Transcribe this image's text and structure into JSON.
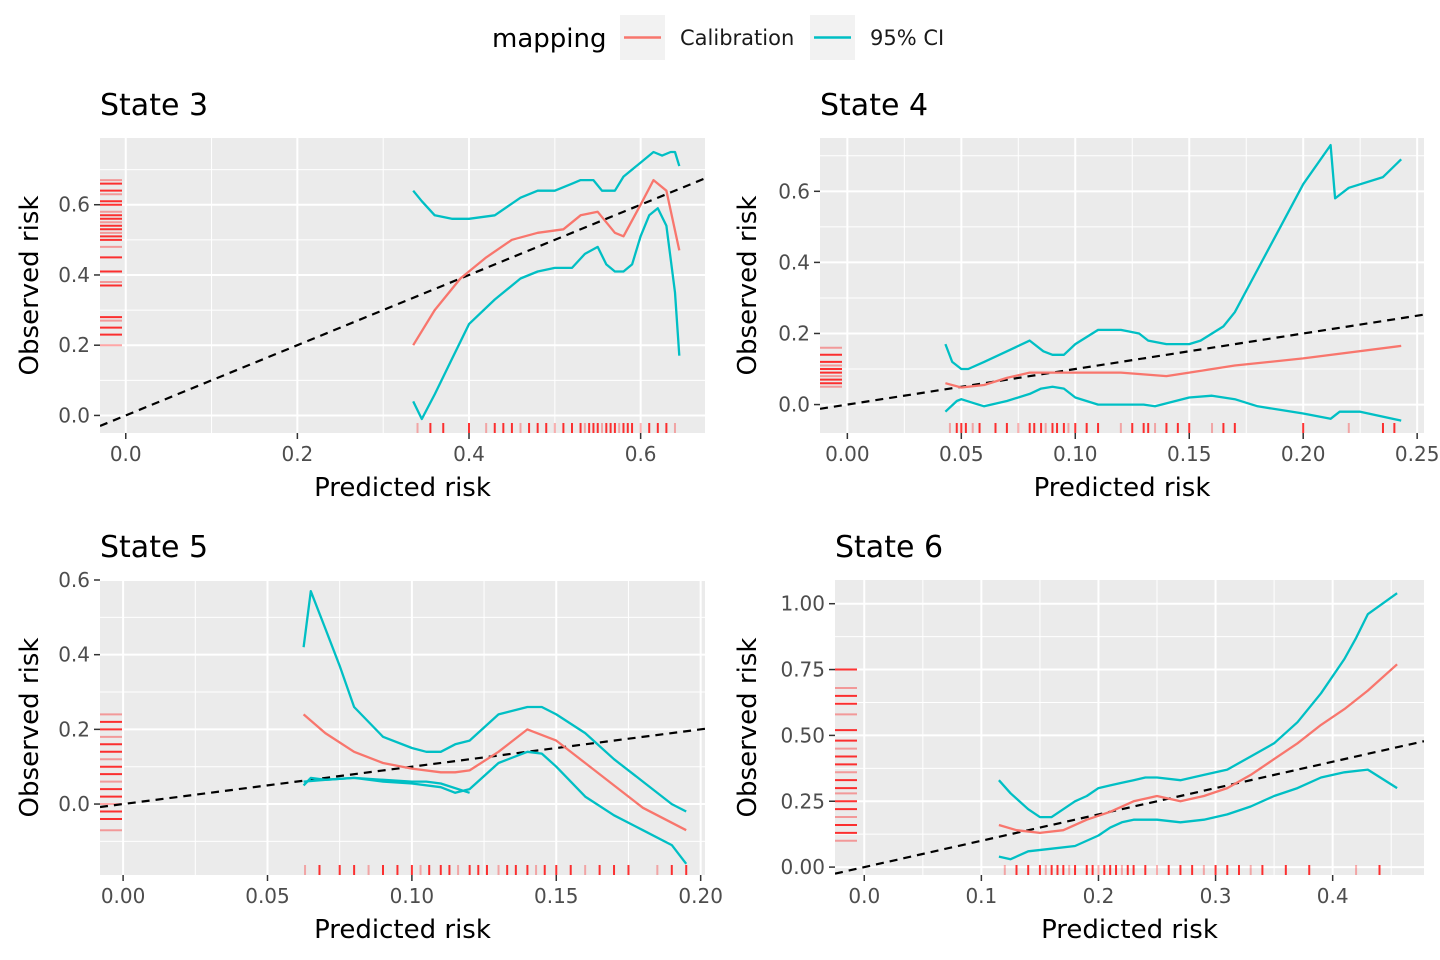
{
  "legend": {
    "title": "mapping",
    "items": [
      {
        "label": "Calibration",
        "color": "#F8766D"
      },
      {
        "label": "95% CI",
        "color": "#00BFC4"
      }
    ]
  },
  "colors": {
    "calibration": "#F8766D",
    "ci": "#00BFC4",
    "reference_line": "#000000",
    "rug": "#FF0000",
    "panel_background": "#EBEBEB",
    "gridline": "#FFFFFF"
  },
  "chart_data": [
    {
      "type": "line",
      "title": "State 3",
      "xlabel": "Predicted risk",
      "ylabel": "Observed risk",
      "xlim": [
        -0.03,
        0.675
      ],
      "ylim": [
        -0.05,
        0.79
      ],
      "xticks": [
        0.0,
        0.2,
        0.4,
        0.6
      ],
      "xtick_labels": [
        "0.0",
        "0.2",
        "0.4",
        "0.6"
      ],
      "yticks": [
        0.0,
        0.2,
        0.4,
        0.6
      ],
      "ytick_labels": [
        "0.0",
        "0.2",
        "0.4",
        "0.6"
      ],
      "grid": true,
      "reference_line": {
        "from": [
          -0.03,
          -0.03
        ],
        "to": [
          0.675,
          0.675
        ],
        "style": "dashed"
      },
      "series": [
        {
          "name": "Calibration",
          "color": "#F8766D",
          "x": [
            0.335,
            0.36,
            0.39,
            0.42,
            0.45,
            0.48,
            0.51,
            0.53,
            0.55,
            0.57,
            0.58,
            0.6,
            0.615,
            0.63,
            0.645
          ],
          "y": [
            0.2,
            0.3,
            0.39,
            0.45,
            0.5,
            0.52,
            0.53,
            0.57,
            0.58,
            0.52,
            0.51,
            0.6,
            0.67,
            0.64,
            0.47
          ]
        },
        {
          "name": "95% CI",
          "color": "#00BFC4",
          "x": [
            0.335,
            0.345,
            0.36,
            0.38,
            0.4,
            0.43,
            0.46,
            0.48,
            0.5,
            0.52,
            0.53,
            0.545,
            0.555,
            0.57,
            0.58,
            0.6,
            0.615,
            0.625,
            0.635,
            0.64,
            0.645
          ],
          "y": [
            0.64,
            0.61,
            0.57,
            0.56,
            0.56,
            0.57,
            0.62,
            0.64,
            0.64,
            0.66,
            0.67,
            0.67,
            0.64,
            0.64,
            0.68,
            0.72,
            0.75,
            0.74,
            0.75,
            0.75,
            0.71
          ]
        },
        {
          "name": "95% CI",
          "color": "#00BFC4",
          "x": [
            0.335,
            0.345,
            0.36,
            0.38,
            0.4,
            0.43,
            0.46,
            0.48,
            0.5,
            0.52,
            0.535,
            0.55,
            0.56,
            0.57,
            0.58,
            0.59,
            0.6,
            0.61,
            0.62,
            0.63,
            0.64,
            0.645
          ],
          "y": [
            0.04,
            -0.01,
            0.06,
            0.16,
            0.26,
            0.33,
            0.39,
            0.41,
            0.42,
            0.42,
            0.46,
            0.48,
            0.43,
            0.41,
            0.41,
            0.43,
            0.51,
            0.57,
            0.59,
            0.54,
            0.35,
            0.17
          ]
        }
      ],
      "rug_y": [
        0.2,
        0.23,
        0.25,
        0.27,
        0.28,
        0.37,
        0.38,
        0.41,
        0.45,
        0.48,
        0.5,
        0.51,
        0.52,
        0.53,
        0.54,
        0.55,
        0.56,
        0.57,
        0.58,
        0.6,
        0.61,
        0.63,
        0.64,
        0.66,
        0.67
      ],
      "rug_x": [
        0.34,
        0.355,
        0.37,
        0.4,
        0.42,
        0.43,
        0.44,
        0.45,
        0.46,
        0.47,
        0.48,
        0.49,
        0.5,
        0.51,
        0.52,
        0.53,
        0.535,
        0.54,
        0.545,
        0.55,
        0.555,
        0.56,
        0.565,
        0.57,
        0.575,
        0.58,
        0.585,
        0.59,
        0.6,
        0.61,
        0.62,
        0.63,
        0.64
      ]
    },
    {
      "type": "line",
      "title": "State 4",
      "xlabel": "Predicted risk",
      "ylabel": "Observed risk",
      "xlim": [
        -0.012,
        0.253
      ],
      "ylim": [
        -0.08,
        0.75
      ],
      "xticks": [
        0.0,
        0.05,
        0.1,
        0.15,
        0.2,
        0.25
      ],
      "xtick_labels": [
        "0.00",
        "0.05",
        "0.10",
        "0.15",
        "0.20",
        "0.25"
      ],
      "yticks": [
        0.0,
        0.2,
        0.4,
        0.6
      ],
      "ytick_labels": [
        "0.0",
        "0.2",
        "0.4",
        "0.6"
      ],
      "grid": true,
      "reference_line": {
        "from": [
          -0.012,
          -0.012
        ],
        "to": [
          0.253,
          0.253
        ],
        "style": "dashed"
      },
      "series": [
        {
          "name": "Calibration",
          "color": "#F8766D",
          "x": [
            0.043,
            0.05,
            0.06,
            0.07,
            0.08,
            0.09,
            0.1,
            0.12,
            0.13,
            0.14,
            0.15,
            0.17,
            0.2,
            0.243
          ],
          "y": [
            0.06,
            0.048,
            0.055,
            0.075,
            0.09,
            0.09,
            0.09,
            0.09,
            0.085,
            0.08,
            0.09,
            0.11,
            0.13,
            0.165
          ]
        },
        {
          "name": "95% CI",
          "color": "#00BFC4",
          "x": [
            0.043,
            0.046,
            0.05,
            0.053,
            0.06,
            0.07,
            0.08,
            0.086,
            0.09,
            0.095,
            0.1,
            0.11,
            0.12,
            0.128,
            0.132,
            0.14,
            0.15,
            0.155,
            0.16,
            0.165,
            0.17,
            0.18,
            0.19,
            0.2,
            0.212,
            0.214,
            0.22,
            0.235,
            0.243
          ],
          "y": [
            0.17,
            0.12,
            0.1,
            0.1,
            0.12,
            0.15,
            0.18,
            0.15,
            0.14,
            0.14,
            0.17,
            0.21,
            0.21,
            0.2,
            0.18,
            0.17,
            0.17,
            0.18,
            0.2,
            0.22,
            0.26,
            0.38,
            0.5,
            0.62,
            0.73,
            0.58,
            0.61,
            0.64,
            0.69
          ]
        },
        {
          "name": "95% CI",
          "color": "#00BFC4",
          "x": [
            0.043,
            0.048,
            0.05,
            0.055,
            0.06,
            0.07,
            0.08,
            0.085,
            0.09,
            0.095,
            0.1,
            0.11,
            0.12,
            0.13,
            0.135,
            0.15,
            0.16,
            0.17,
            0.18,
            0.19,
            0.2,
            0.212,
            0.216,
            0.225,
            0.243
          ],
          "y": [
            -0.02,
            0.01,
            0.015,
            0.005,
            -0.005,
            0.01,
            0.03,
            0.045,
            0.05,
            0.045,
            0.02,
            0.0,
            0.0,
            0.0,
            -0.005,
            0.02,
            0.025,
            0.015,
            -0.005,
            -0.015,
            -0.025,
            -0.04,
            -0.02,
            -0.02,
            -0.045
          ]
        }
      ],
      "rug_y": [
        0.05,
        0.06,
        0.07,
        0.08,
        0.09,
        0.1,
        0.11,
        0.12,
        0.14,
        0.16
      ],
      "rug_x": [
        0.045,
        0.048,
        0.05,
        0.052,
        0.055,
        0.058,
        0.065,
        0.07,
        0.075,
        0.08,
        0.082,
        0.085,
        0.087,
        0.09,
        0.092,
        0.095,
        0.097,
        0.1,
        0.105,
        0.11,
        0.12,
        0.125,
        0.13,
        0.132,
        0.135,
        0.14,
        0.145,
        0.15,
        0.16,
        0.165,
        0.17,
        0.2,
        0.22,
        0.235,
        0.24
      ]
    },
    {
      "type": "line",
      "title": "State 5",
      "xlabel": "Predicted risk",
      "ylabel": "Observed risk",
      "xlim": [
        -0.008,
        0.2015
      ],
      "ylim": [
        -0.19,
        0.6
      ],
      "xticks": [
        0.0,
        0.05,
        0.1,
        0.15,
        0.2
      ],
      "xtick_labels": [
        "0.00",
        "0.05",
        "0.10",
        "0.15",
        "0.20"
      ],
      "yticks": [
        0.0,
        0.2,
        0.4,
        0.6
      ],
      "ytick_labels": [
        "0.0",
        "0.2",
        "0.4",
        "0.6"
      ],
      "grid": true,
      "reference_line": {
        "from": [
          -0.008,
          -0.008
        ],
        "to": [
          0.2015,
          0.2015
        ],
        "style": "dashed"
      },
      "series": [
        {
          "name": "Calibration",
          "color": "#F8766D",
          "x": [
            0.0625,
            0.07,
            0.08,
            0.09,
            0.1,
            0.11,
            0.115,
            0.12,
            0.13,
            0.14,
            0.15,
            0.16,
            0.17,
            0.18,
            0.195
          ],
          "y": [
            0.24,
            0.19,
            0.14,
            0.11,
            0.095,
            0.085,
            0.085,
            0.09,
            0.14,
            0.2,
            0.17,
            0.11,
            0.05,
            -0.01,
            -0.07
          ]
        },
        {
          "name": "95% CI",
          "color": "#00BFC4",
          "x": [
            0.0625,
            0.065,
            0.07,
            0.075,
            0.08,
            0.09,
            0.1,
            0.105,
            0.11,
            0.115,
            0.12,
            0.13,
            0.14,
            0.145,
            0.15,
            0.16,
            0.17,
            0.18,
            0.19,
            0.195
          ],
          "y": [
            0.42,
            0.57,
            0.47,
            0.37,
            0.26,
            0.18,
            0.15,
            0.14,
            0.14,
            0.16,
            0.17,
            0.24,
            0.26,
            0.26,
            0.24,
            0.19,
            0.12,
            0.06,
            0.0,
            -0.02
          ]
        },
        {
          "name": "95% CI",
          "color": "#00BFC4",
          "x": [
            0.0625,
            0.065,
            0.07,
            0.08,
            0.09,
            0.1,
            0.11,
            0.115,
            0.12,
            0.13,
            0.14,
            0.145,
            0.15,
            0.16,
            0.17,
            0.18,
            0.19,
            0.195
          ],
          "y": [
            0.05,
            0.07,
            0.065,
            0.07,
            0.06,
            0.055,
            0.045,
            0.03,
            0.04,
            0.11,
            0.14,
            0.135,
            0.1,
            0.02,
            -0.03,
            -0.07,
            -0.11,
            -0.16
          ]
        },
        {
          "name": "95% CI",
          "color": "#00BFC4",
          "x": [
            0.0625,
            0.07,
            0.08,
            0.09,
            0.1,
            0.105,
            0.11,
            0.12
          ],
          "y": [
            0.06,
            0.065,
            0.07,
            0.065,
            0.06,
            0.06,
            0.055,
            0.03
          ]
        }
      ],
      "rug_y": [
        -0.07,
        -0.04,
        -0.02,
        0.0,
        0.02,
        0.04,
        0.06,
        0.08,
        0.1,
        0.12,
        0.14,
        0.16,
        0.18,
        0.2,
        0.22,
        0.24
      ],
      "rug_x": [
        0.063,
        0.068,
        0.075,
        0.08,
        0.085,
        0.09,
        0.095,
        0.1,
        0.103,
        0.106,
        0.11,
        0.113,
        0.116,
        0.12,
        0.123,
        0.126,
        0.13,
        0.133,
        0.136,
        0.14,
        0.143,
        0.146,
        0.15,
        0.155,
        0.16,
        0.165,
        0.17,
        0.175,
        0.185,
        0.19,
        0.195
      ]
    },
    {
      "type": "line",
      "title": "State 6",
      "xlabel": "Predicted risk",
      "ylabel": "Observed risk",
      "xlim": [
        -0.025,
        0.478
      ],
      "ylim": [
        -0.03,
        1.09
      ],
      "xticks": [
        0.0,
        0.1,
        0.2,
        0.3,
        0.4
      ],
      "xtick_labels": [
        "0.0",
        "0.1",
        "0.2",
        "0.3",
        "0.4"
      ],
      "yticks": [
        0.0,
        0.25,
        0.5,
        0.75,
        1.0
      ],
      "ytick_labels": [
        "0.00",
        "0.25",
        "0.50",
        "0.75",
        "1.00"
      ],
      "grid": true,
      "reference_line": {
        "from": [
          -0.025,
          -0.025
        ],
        "to": [
          0.478,
          0.478
        ],
        "style": "dashed"
      },
      "series": [
        {
          "name": "Calibration",
          "color": "#F8766D",
          "x": [
            0.115,
            0.13,
            0.15,
            0.17,
            0.19,
            0.21,
            0.23,
            0.25,
            0.27,
            0.29,
            0.31,
            0.33,
            0.35,
            0.37,
            0.39,
            0.41,
            0.43,
            0.455
          ],
          "y": [
            0.16,
            0.14,
            0.13,
            0.14,
            0.18,
            0.21,
            0.25,
            0.27,
            0.25,
            0.27,
            0.3,
            0.35,
            0.41,
            0.47,
            0.54,
            0.6,
            0.67,
            0.77
          ]
        },
        {
          "name": "95% CI",
          "color": "#00BFC4",
          "x": [
            0.115,
            0.125,
            0.14,
            0.15,
            0.16,
            0.17,
            0.18,
            0.19,
            0.2,
            0.21,
            0.22,
            0.23,
            0.24,
            0.25,
            0.27,
            0.29,
            0.31,
            0.33,
            0.35,
            0.37,
            0.39,
            0.41,
            0.42,
            0.43,
            0.455
          ],
          "y": [
            0.33,
            0.28,
            0.22,
            0.19,
            0.19,
            0.22,
            0.25,
            0.27,
            0.3,
            0.31,
            0.32,
            0.33,
            0.34,
            0.34,
            0.33,
            0.35,
            0.37,
            0.42,
            0.47,
            0.55,
            0.66,
            0.79,
            0.87,
            0.96,
            1.04
          ]
        },
        {
          "name": "95% CI",
          "color": "#00BFC4",
          "x": [
            0.115,
            0.125,
            0.14,
            0.16,
            0.18,
            0.2,
            0.21,
            0.22,
            0.23,
            0.25,
            0.27,
            0.29,
            0.31,
            0.33,
            0.35,
            0.37,
            0.39,
            0.41,
            0.43,
            0.455
          ],
          "y": [
            0.04,
            0.03,
            0.06,
            0.07,
            0.08,
            0.12,
            0.15,
            0.17,
            0.18,
            0.18,
            0.17,
            0.18,
            0.2,
            0.23,
            0.27,
            0.3,
            0.34,
            0.36,
            0.37,
            0.3
          ]
        }
      ],
      "rug_y": [
        0.1,
        0.13,
        0.16,
        0.19,
        0.22,
        0.25,
        0.28,
        0.3,
        0.33,
        0.36,
        0.39,
        0.42,
        0.45,
        0.48,
        0.52,
        0.58,
        0.62,
        0.65,
        0.68,
        0.75
      ],
      "rug_x": [
        0.12,
        0.13,
        0.14,
        0.15,
        0.155,
        0.16,
        0.165,
        0.17,
        0.175,
        0.18,
        0.19,
        0.195,
        0.2,
        0.205,
        0.21,
        0.215,
        0.22,
        0.225,
        0.23,
        0.24,
        0.25,
        0.26,
        0.27,
        0.28,
        0.29,
        0.3,
        0.31,
        0.32,
        0.33,
        0.34,
        0.36,
        0.38,
        0.42,
        0.44
      ]
    }
  ]
}
